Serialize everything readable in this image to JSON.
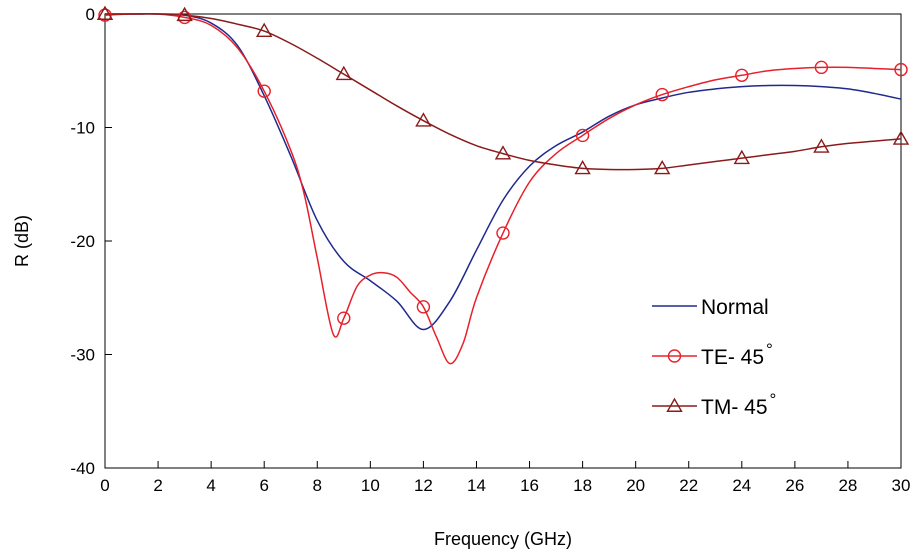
{
  "chart_data": {
    "type": "line",
    "title": "",
    "xlabel": "Frequency (GHz)",
    "ylabel": "R (dB)",
    "xlim": [
      0,
      30
    ],
    "ylim": [
      -40,
      0
    ],
    "xticks": [
      0,
      2,
      4,
      6,
      8,
      10,
      12,
      14,
      16,
      18,
      20,
      22,
      24,
      26,
      28,
      30
    ],
    "yticks": [
      0,
      -10,
      -20,
      -30,
      -40
    ],
    "grid": false,
    "legend_position": "lower-right",
    "series": [
      {
        "name": "Normal",
        "color": "#1f2a8c",
        "marker": "none",
        "x": [
          0,
          1,
          2,
          3,
          4,
          5,
          6,
          7,
          8,
          9,
          10,
          11,
          12,
          13,
          14,
          15,
          16,
          17,
          18,
          19,
          20,
          21,
          22,
          23,
          24,
          25,
          26,
          27,
          28,
          29,
          30
        ],
        "y": [
          0,
          0,
          0,
          -0.1,
          -0.8,
          -2.8,
          -7.2,
          -12.5,
          -18.2,
          -21.8,
          -23.5,
          -25.3,
          -27.8,
          -25.3,
          -20.8,
          -16.4,
          -13.4,
          -11.6,
          -10.4,
          -9.0,
          -8.0,
          -7.4,
          -6.9,
          -6.6,
          -6.4,
          -6.3,
          -6.3,
          -6.4,
          -6.6,
          -7.0,
          -7.5
        ]
      },
      {
        "name": "TE- 45°",
        "color": "#e8202a",
        "marker": "circle",
        "x": [
          0,
          1,
          2,
          3,
          4,
          5,
          6,
          7,
          7.5,
          8,
          8.6,
          9,
          9.5,
          10,
          10.5,
          11,
          11.5,
          12,
          12.5,
          13,
          13.5,
          14,
          15,
          16,
          17,
          18,
          19,
          20,
          21,
          22,
          23,
          24,
          25,
          26,
          27,
          28,
          29,
          30
        ],
        "y": [
          -0.1,
          0,
          0,
          -0.3,
          -1.0,
          -3.0,
          -6.8,
          -12.0,
          -15.8,
          -21.5,
          -28.2,
          -26.8,
          -24.0,
          -23.0,
          -22.8,
          -23.2,
          -24.5,
          -25.8,
          -28.5,
          -30.8,
          -29.0,
          -25.0,
          -19.3,
          -14.8,
          -12.3,
          -10.7,
          -9.2,
          -8.0,
          -7.1,
          -6.4,
          -5.8,
          -5.4,
          -5.0,
          -4.8,
          -4.7,
          -4.7,
          -4.8,
          -4.9
        ],
        "marker_x": [
          0,
          3,
          6,
          9,
          12,
          15,
          18,
          21,
          24,
          27,
          30
        ],
        "marker_y": [
          -0.1,
          -0.3,
          -6.8,
          -26.8,
          -25.8,
          -19.3,
          -10.7,
          -7.1,
          -5.4,
          -4.7,
          -4.9
        ]
      },
      {
        "name": "TM- 45°",
        "color": "#8b1a1a",
        "marker": "triangle",
        "x": [
          0,
          1,
          2,
          3,
          4,
          5,
          6,
          7,
          8,
          9,
          10,
          11,
          12,
          13,
          14,
          15,
          16,
          17,
          18,
          19,
          20,
          21,
          22,
          23,
          24,
          25,
          26,
          27,
          28,
          29,
          30
        ],
        "y": [
          0,
          0,
          0,
          -0.1,
          -0.4,
          -0.9,
          -1.5,
          -2.6,
          -3.9,
          -5.3,
          -6.7,
          -8.1,
          -9.4,
          -10.6,
          -11.6,
          -12.3,
          -12.9,
          -13.3,
          -13.6,
          -13.7,
          -13.7,
          -13.6,
          -13.3,
          -13.0,
          -12.7,
          -12.4,
          -12.1,
          -11.7,
          -11.4,
          -11.2,
          -11.0
        ],
        "marker_x": [
          0,
          3,
          6,
          9,
          12,
          15,
          18,
          21,
          24,
          27,
          30
        ],
        "marker_y": [
          0,
          -0.1,
          -1.5,
          -5.3,
          -9.4,
          -12.3,
          -13.6,
          -13.6,
          -12.7,
          -11.7,
          -11.0
        ]
      }
    ]
  },
  "legend": {
    "items": [
      {
        "text": "Normal",
        "color": "#1f2a8c",
        "marker": "none"
      },
      {
        "text": "TE- 45",
        "sup": "°",
        "color": "#e8202a",
        "marker": "circle"
      },
      {
        "text": "TM- 45",
        "sup": "°",
        "color": "#8b1a1a",
        "marker": "triangle"
      }
    ]
  }
}
